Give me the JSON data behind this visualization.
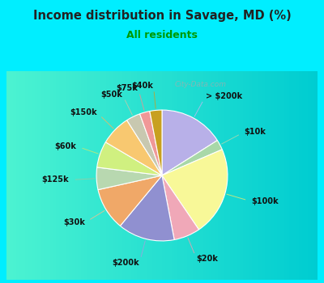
{
  "title": "Income distribution in Savage, MD (%)",
  "subtitle": "All residents",
  "labels": [
    "> $200k",
    "$10k",
    "$100k",
    "$20k",
    "$200k",
    "$30k",
    "$125k",
    "$60k",
    "$150k",
    "$50k",
    "$75k",
    "$40k"
  ],
  "values": [
    16.0,
    2.5,
    22.0,
    6.5,
    14.0,
    10.5,
    5.5,
    6.5,
    7.5,
    3.5,
    2.5,
    3.0
  ],
  "colors": [
    "#b8b0e8",
    "#a8d8a8",
    "#f8f898",
    "#f0a8b8",
    "#9090d0",
    "#f0a868",
    "#b8d8b0",
    "#d0f080",
    "#f8c870",
    "#c8c8b0",
    "#f09898",
    "#c8a020"
  ],
  "background_top": "#00eeff",
  "background_chart_gradient": true,
  "chart_bg_left": "#c8eed8",
  "chart_bg_right": "#f0fdf8",
  "title_color": "#222222",
  "subtitle_color": "#009900",
  "label_color": "#111111",
  "startangle": 90,
  "line_color_map": {
    "> $200k": "#c0b8f0",
    "$10k": "#b0d8b0",
    "$100k": "#e8e870",
    "$20k": "#f0a0b0",
    "$200k": "#a0a0e0",
    "$30k": "#f0c090",
    "$125k": "#a0c8a0",
    "$60k": "#c8e870",
    "$150k": "#f0b860",
    "$50k": "#c8c8a8",
    "$75k": "#f09090",
    "$40k": "#c8a020"
  }
}
